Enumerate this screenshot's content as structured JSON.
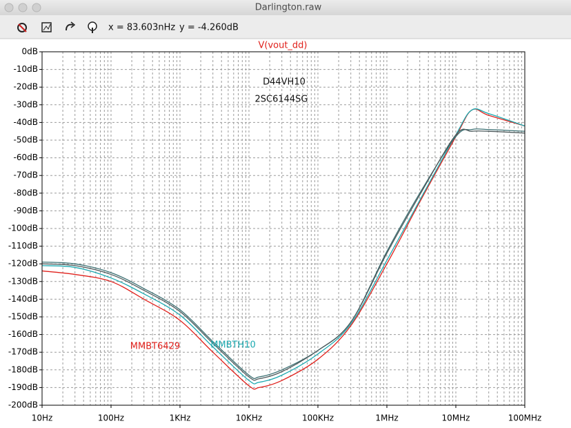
{
  "window": {
    "title": "Darlington.raw"
  },
  "toolbar": {
    "readout_x": "x = 83.603nHz",
    "readout_y": "y = -4.260dB"
  },
  "chart_data": {
    "type": "line",
    "title": "V(vout_dd)",
    "log_x": true,
    "grid": true,
    "x": [
      10,
      30,
      100,
      300,
      1000,
      3000,
      10000,
      14000,
      30000,
      100000,
      300000,
      1000000,
      3000000,
      10000000,
      17000000,
      30000000,
      100000000
    ],
    "series": [
      {
        "name": "MMBT6429",
        "color": "#e0201b",
        "values": [
          -124,
          -126,
          -130,
          -140,
          -152,
          -170,
          -189,
          -190,
          -186,
          -174,
          -155,
          -120,
          -85,
          -48,
          -33,
          -36,
          -42
        ]
      },
      {
        "name": "MMBTH10",
        "color": "#1aa9b0",
        "values": [
          -121,
          -122,
          -128,
          -137,
          -149,
          -167,
          -186,
          -187,
          -183,
          -171,
          -154,
          -118,
          -84,
          -47,
          -33,
          -35,
          -42
        ]
      },
      {
        "name": "D44VH10",
        "color": "#3b6f72",
        "values": [
          -119,
          -120,
          -125,
          -134,
          -146,
          -164,
          -183,
          -184,
          -180,
          -169,
          -153,
          -113,
          -80,
          -48,
          -44,
          -44,
          -45
        ]
      },
      {
        "name": "2SC6144SG",
        "color": "#4d5a5c",
        "values": [
          -120,
          -121,
          -126,
          -135,
          -147,
          -165,
          -184,
          -185,
          -181,
          -169,
          -153,
          -114,
          -81,
          -47,
          -45,
          -45,
          -46
        ]
      }
    ],
    "xlim": [
      10,
      100000000
    ],
    "xticks": [
      {
        "value": 10,
        "label": "10Hz"
      },
      {
        "value": 100,
        "label": "100Hz"
      },
      {
        "value": 1000,
        "label": "1KHz"
      },
      {
        "value": 10000,
        "label": "10KHz"
      },
      {
        "value": 100000,
        "label": "100KHz"
      },
      {
        "value": 1000000,
        "label": "1MHz"
      },
      {
        "value": 10000000,
        "label": "10MHz"
      },
      {
        "value": 100000000,
        "label": "100MHz"
      }
    ],
    "ylim": [
      -200,
      0
    ],
    "yticks": [
      {
        "value": 0,
        "label": "0dB"
      },
      {
        "value": -10,
        "label": "-10dB"
      },
      {
        "value": -20,
        "label": "-20dB"
      },
      {
        "value": -30,
        "label": "-30dB"
      },
      {
        "value": -40,
        "label": "-40dB"
      },
      {
        "value": -50,
        "label": "-50dB"
      },
      {
        "value": -60,
        "label": "-60dB"
      },
      {
        "value": -70,
        "label": "-70dB"
      },
      {
        "value": -80,
        "label": "-80dB"
      },
      {
        "value": -90,
        "label": "-90dB"
      },
      {
        "value": -100,
        "label": "-100dB"
      },
      {
        "value": -110,
        "label": "-110dB"
      },
      {
        "value": -120,
        "label": "-120dB"
      },
      {
        "value": -130,
        "label": "-130dB"
      },
      {
        "value": -140,
        "label": "-140dB"
      },
      {
        "value": -150,
        "label": "-150dB"
      },
      {
        "value": -160,
        "label": "-160dB"
      },
      {
        "value": -170,
        "label": "-170dB"
      },
      {
        "value": -180,
        "label": "-180dB"
      },
      {
        "value": -190,
        "label": "-190dB"
      },
      {
        "value": -200,
        "label": "-200dB"
      }
    ]
  }
}
